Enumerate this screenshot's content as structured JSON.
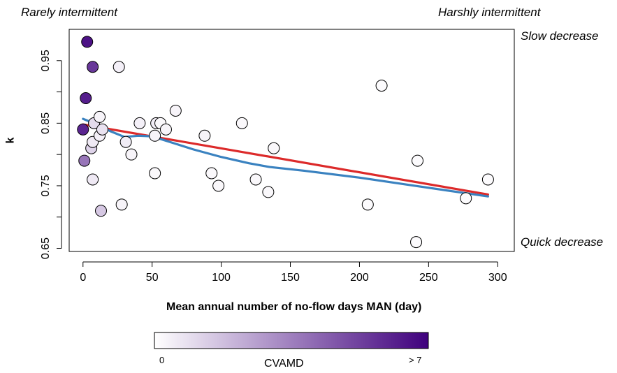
{
  "corner_labels": {
    "top_left": "Rarely intermittent",
    "top_right": "Harshly intermittent",
    "right_top": "Slow decrease",
    "right_bottom": "Quick decrease"
  },
  "colorbar": {
    "title": "CVAMD",
    "min_label": "0",
    "max_label": "> 7",
    "colors": [
      "#ffffff",
      "#3f007d"
    ]
  },
  "chart_data": {
    "type": "scatter",
    "xlabel": "Mean annual number of no-flow days MAN (day)",
    "ylabel": "k",
    "xlim": [
      -10,
      312
    ],
    "ylim": [
      0.645,
      1.0
    ],
    "x_ticks": [
      0,
      50,
      100,
      150,
      200,
      250,
      300
    ],
    "y_ticks": [
      0.65,
      0.75,
      0.85,
      0.95
    ],
    "y_tick_labels": [
      "0.65",
      "0.75",
      "0.85",
      "0.95"
    ],
    "grid": false,
    "color_variable": "CVAMD",
    "color_range": [
      0,
      7
    ],
    "points": [
      {
        "x": 3,
        "y": 0.98,
        "c": 6.5
      },
      {
        "x": 7,
        "y": 0.94,
        "c": 5.5
      },
      {
        "x": 2,
        "y": 0.89,
        "c": 6.2
      },
      {
        "x": 0,
        "y": 0.84,
        "c": 6.0
      },
      {
        "x": 1,
        "y": 0.79,
        "c": 3.8
      },
      {
        "x": 6,
        "y": 0.81,
        "c": 1.2
      },
      {
        "x": 7,
        "y": 0.82,
        "c": 0.6
      },
      {
        "x": 8,
        "y": 0.85,
        "c": 1.0
      },
      {
        "x": 7,
        "y": 0.76,
        "c": 0.6
      },
      {
        "x": 12,
        "y": 0.86,
        "c": 0.3
      },
      {
        "x": 12,
        "y": 0.83,
        "c": 0.4
      },
      {
        "x": 14,
        "y": 0.84,
        "c": 0.8
      },
      {
        "x": 13,
        "y": 0.71,
        "c": 1.5
      },
      {
        "x": 26,
        "y": 0.94,
        "c": 0.4
      },
      {
        "x": 28,
        "y": 0.72,
        "c": 0.3
      },
      {
        "x": 31,
        "y": 0.82,
        "c": 0.5
      },
      {
        "x": 35,
        "y": 0.8,
        "c": 0.3
      },
      {
        "x": 41,
        "y": 0.85,
        "c": 0.4
      },
      {
        "x": 52,
        "y": 0.83,
        "c": 0.3
      },
      {
        "x": 53,
        "y": 0.85,
        "c": 0.5
      },
      {
        "x": 52,
        "y": 0.77,
        "c": 0.2
      },
      {
        "x": 56,
        "y": 0.85,
        "c": 0.2
      },
      {
        "x": 60,
        "y": 0.84,
        "c": 0.3
      },
      {
        "x": 67,
        "y": 0.87,
        "c": 0.3
      },
      {
        "x": 88,
        "y": 0.83,
        "c": 0.3
      },
      {
        "x": 93,
        "y": 0.77,
        "c": 0.2
      },
      {
        "x": 98,
        "y": 0.75,
        "c": 0.2
      },
      {
        "x": 115,
        "y": 0.85,
        "c": 0.2
      },
      {
        "x": 125,
        "y": 0.76,
        "c": 0.2
      },
      {
        "x": 134,
        "y": 0.74,
        "c": 0.2
      },
      {
        "x": 138,
        "y": 0.81,
        "c": 0.2
      },
      {
        "x": 206,
        "y": 0.72,
        "c": 0.1
      },
      {
        "x": 216,
        "y": 0.91,
        "c": 0.1
      },
      {
        "x": 241,
        "y": 0.66,
        "c": 0.1
      },
      {
        "x": 242,
        "y": 0.79,
        "c": 0.1
      },
      {
        "x": 277,
        "y": 0.73,
        "c": 0.1
      },
      {
        "x": 293,
        "y": 0.76,
        "c": 0.1
      }
    ],
    "series": [
      {
        "type": "line",
        "color": "#dc2a2a",
        "x": [
          0,
          293
        ],
        "y": [
          0.848,
          0.736
        ]
      },
      {
        "type": "line",
        "color": "#3a82c0",
        "x": [
          0,
          10,
          20,
          30,
          40,
          50,
          60,
          80,
          100,
          120,
          135,
          160,
          200,
          240,
          293
        ],
        "y": [
          0.857,
          0.848,
          0.837,
          0.828,
          0.83,
          0.829,
          0.822,
          0.808,
          0.796,
          0.786,
          0.78,
          0.774,
          0.763,
          0.75,
          0.733
        ]
      }
    ]
  }
}
